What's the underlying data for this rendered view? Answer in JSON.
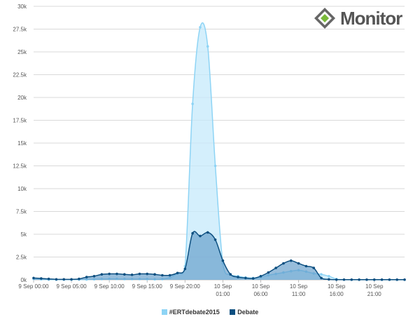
{
  "logo": {
    "text": "Monitor",
    "icon": "diamond-logo-icon"
  },
  "chart_data": {
    "type": "area",
    "ylim": [
      0,
      30000
    ],
    "y_ticks": [
      0,
      2500,
      5000,
      7500,
      10000,
      12500,
      15000,
      17500,
      20000,
      22500,
      25000,
      27500,
      30000
    ],
    "y_tick_labels": [
      "0k",
      "2.5k",
      "5k",
      "7.5k",
      "10k",
      "12.5k",
      "15k",
      "17.5k",
      "20k",
      "22.5k",
      "25k",
      "27.5k",
      "30k"
    ],
    "x_tick_labels": [
      {
        "hour": 0,
        "lines": [
          "9 Sep 00:00"
        ]
      },
      {
        "hour": 5,
        "lines": [
          "9 Sep 05:00"
        ]
      },
      {
        "hour": 10,
        "lines": [
          "9 Sep 10:00"
        ]
      },
      {
        "hour": 15,
        "lines": [
          "9 Sep 15:00"
        ]
      },
      {
        "hour": 20,
        "lines": [
          "9 Sep 20:00"
        ]
      },
      {
        "hour": 25,
        "lines": [
          "10 Sep",
          "01:00"
        ]
      },
      {
        "hour": 30,
        "lines": [
          "10 Sep",
          "06:00"
        ]
      },
      {
        "hour": 35,
        "lines": [
          "10 Sep",
          "11:00"
        ]
      },
      {
        "hour": 40,
        "lines": [
          "10 Sep",
          "16:00"
        ]
      },
      {
        "hour": 45,
        "lines": [
          "10 Sep",
          "21:00"
        ]
      }
    ],
    "x_start": "9 Sep 00:00",
    "x_step_hours": 1,
    "grid": true,
    "legend_position": "bottom-center",
    "series": [
      {
        "name": "#ERTdebate2015",
        "color": "#8ed4f5",
        "fill": "#c6eafb",
        "values": [
          100,
          50,
          30,
          20,
          20,
          20,
          30,
          30,
          50,
          80,
          100,
          100,
          80,
          80,
          80,
          80,
          50,
          80,
          250,
          700,
          1500,
          19300,
          27700,
          25600,
          12500,
          1800,
          600,
          400,
          250,
          200,
          300,
          500,
          650,
          800,
          950,
          1050,
          900,
          700,
          600,
          400,
          80,
          20,
          10,
          10,
          10,
          10,
          10,
          10,
          10,
          10
        ]
      },
      {
        "name": "Debate",
        "color": "#0d4f80",
        "fill": "#5f9ac8",
        "values": [
          200,
          150,
          100,
          50,
          50,
          50,
          100,
          300,
          400,
          600,
          650,
          650,
          600,
          550,
          650,
          650,
          600,
          500,
          500,
          750,
          1200,
          5100,
          4800,
          5200,
          4400,
          2100,
          600,
          300,
          200,
          150,
          400,
          800,
          1300,
          1800,
          2100,
          1800,
          1500,
          1300,
          200,
          50,
          20,
          20,
          20,
          20,
          20,
          20,
          20,
          20,
          20,
          20
        ]
      }
    ]
  }
}
